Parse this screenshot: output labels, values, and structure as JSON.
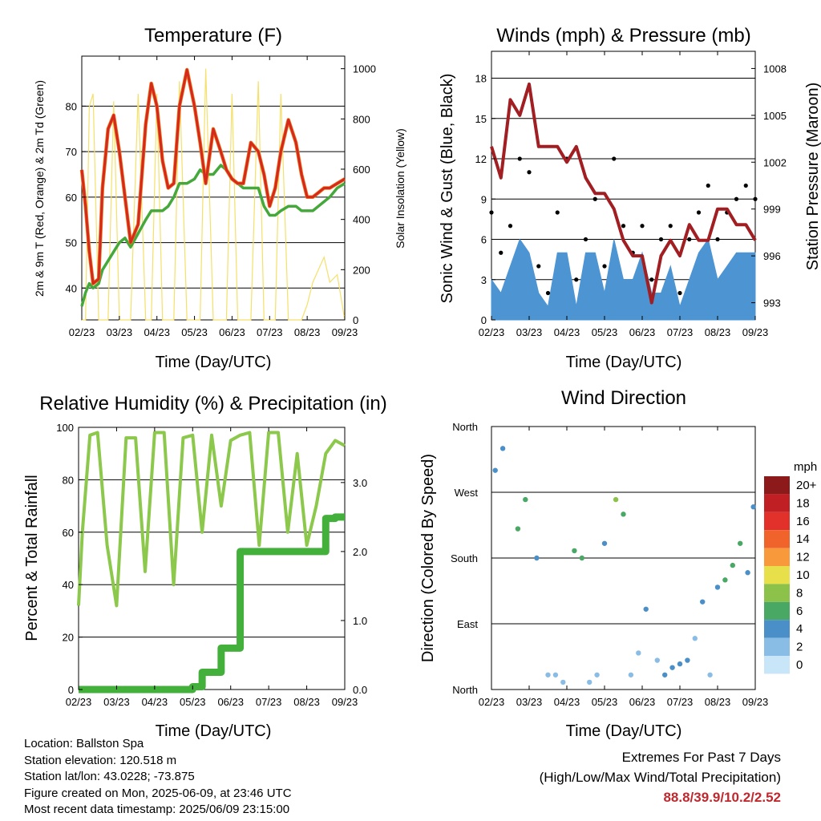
{
  "charts": {
    "temp": {
      "title": "Temperature (F)",
      "xlabel": "Time (Day/UTC)",
      "ylabel": "2m & 9m T (Red, Orange) & 2m Td (Green)",
      "ylabel_right": "Solar Insolation (Yellow)",
      "xticks": [
        "02/23",
        "03/23",
        "04/23",
        "05/23",
        "06/23",
        "07/23",
        "08/23",
        "09/23"
      ],
      "yticks": [
        "40",
        "50",
        "60",
        "70",
        "80"
      ],
      "yticks_right": [
        "0",
        "200",
        "400",
        "600",
        "800",
        "1000"
      ]
    },
    "wind": {
      "title": "Winds (mph) & Pressure (mb)",
      "xlabel": "Time (Day/UTC)",
      "ylabel": "Sonic Wind & Gust (Blue, Black)",
      "ylabel_right": "Station Pressure (Maroon)",
      "xticks": [
        "02/23",
        "03/23",
        "04/23",
        "05/23",
        "06/23",
        "07/23",
        "08/23",
        "09/23"
      ],
      "yticks": [
        "0",
        "3",
        "6",
        "9",
        "12",
        "15",
        "18"
      ],
      "yticks_right": [
        "993",
        "996",
        "999",
        "1002",
        "1005",
        "1008"
      ]
    },
    "rh": {
      "title": "Relative Humidity (%) & Precipitation (in)",
      "xlabel": "Time (Day/UTC)",
      "ylabel": "Percent & Total Rainfall",
      "xticks": [
        "02/23",
        "03/23",
        "04/23",
        "05/23",
        "06/23",
        "07/23",
        "08/23",
        "09/23"
      ],
      "yticks": [
        "0",
        "20",
        "40",
        "60",
        "80",
        "100"
      ],
      "yticks_right": [
        "0.0",
        "1.0",
        "2.0",
        "3.0"
      ]
    },
    "dir": {
      "title": "Wind Direction",
      "xlabel": "Time (Day/UTC)",
      "ylabel": "Direction (Colored By Speed)",
      "xticks": [
        "02/23",
        "03/23",
        "04/23",
        "05/23",
        "06/23",
        "07/23",
        "08/23",
        "09/23"
      ],
      "yticks": [
        "North",
        "East",
        "South",
        "West",
        "North"
      ],
      "legend_title": "mph",
      "legend_labels": [
        "20+",
        "18",
        "16",
        "14",
        "12",
        "10",
        "8",
        "6",
        "4",
        "2",
        "0"
      ]
    }
  },
  "colors": {
    "temp_red": "#d42a1e",
    "temp_orange": "#f07a1a",
    "dewpoint": "#44a83a",
    "insolation": "#f5e06a",
    "gust": "#000000",
    "wind": "#4d94d3",
    "pressure": "#a11e22",
    "rh": "#8cc84b",
    "precip": "#44b03c",
    "scale": [
      "#8c1a1a",
      "#c01f24",
      "#e2312b",
      "#f0642c",
      "#f89a3c",
      "#e8e04a",
      "#8cc24a",
      "#4aa865",
      "#4a8fc8",
      "#89bde6",
      "#c8e6f8"
    ]
  },
  "info": {
    "location": "Location: Ballston Spa",
    "elevation": "Station elevation: 120.518 m",
    "latlon": "Station lat/lon: 43.0228; -73.875",
    "created": "Figure created on Mon, 2025-06-09, at 23:46 UTC",
    "recent": "Most recent data timestamp: 2025/06/09 23:15:00"
  },
  "extremes": {
    "title": "Extremes For Past 7 Days",
    "subtitle": "(High/Low/Max Wind/Total Precipitation)",
    "values": "88.8/39.9/10.2/2.52"
  },
  "chart_data": [
    {
      "type": "line",
      "x": [
        0,
        0.1,
        0.2,
        0.3,
        0.45,
        0.55,
        0.7,
        0.85,
        1.0,
        1.15,
        1.3,
        1.5,
        1.7,
        1.85,
        2.0,
        2.15,
        2.3,
        2.45,
        2.6,
        2.8,
        3.0,
        3.15,
        3.3,
        3.5,
        3.7,
        3.85,
        4.0,
        4.15,
        4.3,
        4.5,
        4.7,
        4.85,
        5.0,
        5.15,
        5.3,
        5.5,
        5.7,
        5.85,
        6.0,
        6.15,
        6.3,
        6.45,
        6.6,
        6.8,
        7.0
      ],
      "series": [
        {
          "name": "2m T",
          "values": [
            66,
            58,
            48,
            41,
            42,
            62,
            75,
            78,
            70,
            60,
            50,
            54,
            76,
            85,
            80,
            68,
            62,
            63,
            80,
            88,
            80,
            72,
            63,
            75,
            70,
            66,
            64,
            63,
            63,
            72,
            70,
            65,
            58,
            62,
            70,
            77,
            72,
            65,
            60,
            60,
            61,
            62,
            62,
            63,
            64
          ]
        },
        {
          "name": "2m Td",
          "values": [
            36,
            39,
            41,
            40,
            41,
            44,
            46,
            48,
            50,
            51,
            49,
            52,
            55,
            57,
            57,
            57,
            58,
            60,
            63,
            63,
            64,
            66,
            65,
            65,
            67,
            66,
            64,
            63,
            62,
            62,
            62,
            58,
            56,
            56,
            57,
            58,
            58,
            57,
            57,
            57,
            58,
            59,
            60,
            62,
            63
          ]
        },
        {
          "name": "Solar Insolation",
          "values": [
            0,
            0,
            850,
            900,
            0,
            0,
            0,
            870,
            0,
            0,
            0,
            900,
            0,
            0,
            900,
            0,
            0,
            0,
            950,
            0,
            0,
            0,
            1000,
            0,
            0,
            0,
            900,
            0,
            0,
            0,
            950,
            0,
            0,
            0,
            900,
            0,
            0,
            0,
            60,
            150,
            200,
            250,
            150,
            180,
            0
          ]
        }
      ],
      "title": "Temperature (F)",
      "xlabel": "Time (Day/UTC)",
      "ylabel": "2m & 9m T (Red, Orange) & 2m Td (Green)",
      "ylim": [
        33,
        91
      ],
      "y2lim": [
        0,
        1050
      ]
    },
    {
      "type": "line",
      "x": [
        0,
        0.25,
        0.5,
        0.75,
        1.0,
        1.25,
        1.5,
        1.75,
        2.0,
        2.25,
        2.5,
        2.75,
        3.0,
        3.25,
        3.5,
        3.75,
        4.0,
        4.25,
        4.5,
        4.75,
        5.0,
        5.25,
        5.5,
        5.75,
        6.0,
        6.25,
        6.5,
        6.75,
        7.0
      ],
      "series": [
        {
          "name": "Wind",
          "values": [
            3,
            2,
            4,
            6,
            5,
            2,
            1,
            5,
            5,
            1,
            5,
            5,
            2,
            6,
            3,
            3,
            5,
            2,
            2,
            4,
            1,
            3,
            5,
            6,
            3,
            4,
            5,
            5,
            5
          ]
        },
        {
          "name": "Gust",
          "values": [
            8,
            5,
            7,
            12,
            11,
            4,
            2,
            8,
            12,
            3,
            6,
            9,
            4,
            12,
            7,
            5,
            7,
            3,
            6,
            7,
            2,
            6,
            8,
            10,
            6,
            8,
            9,
            10,
            9
          ]
        },
        {
          "name": "Pressure",
          "values": [
            1003,
            1001,
            1006,
            1005,
            1007,
            1003,
            1003,
            1003,
            1002,
            1003,
            1001,
            1000,
            1000,
            999,
            997,
            996,
            996,
            993,
            996,
            997,
            996,
            998,
            997,
            997,
            999,
            999,
            998,
            998,
            997
          ]
        }
      ],
      "title": "Winds (mph) & Pressure (mb)",
      "xlabel": "Time (Day/UTC)",
      "ylabel": "Sonic Wind & Gust (Blue, Black)",
      "ylim": [
        0,
        20
      ],
      "y2lim": [
        991.9,
        1009.1
      ]
    },
    {
      "type": "line",
      "x": [
        0,
        0.1,
        0.3,
        0.5,
        0.75,
        1.0,
        1.25,
        1.5,
        1.75,
        2.0,
        2.25,
        2.5,
        2.75,
        3.0,
        3.25,
        3.5,
        3.75,
        4.0,
        4.25,
        4.5,
        4.75,
        5.0,
        5.25,
        5.5,
        5.75,
        6.0,
        6.25,
        6.5,
        6.75,
        7.0
      ],
      "series": [
        {
          "name": "RH",
          "values": [
            32,
            60,
            97,
            98,
            55,
            32,
            96,
            96,
            45,
            98,
            98,
            40,
            96,
            97,
            60,
            97,
            70,
            95,
            97,
            98,
            55,
            98,
            98,
            60,
            90,
            55,
            70,
            90,
            95,
            93
          ]
        },
        {
          "name": "Total Rainfall",
          "values": [
            0,
            0,
            0,
            0,
            0,
            0,
            0,
            0,
            0,
            0,
            0,
            0,
            0,
            0.04,
            0.25,
            0.25,
            0.6,
            0.6,
            2.0,
            2.0,
            2.0,
            2.0,
            2.0,
            2.0,
            2.0,
            2.0,
            2.0,
            2.48,
            2.5,
            2.5
          ]
        }
      ],
      "title": "Relative Humidity (%) & Precipitation (in)",
      "xlabel": "Time (Day/UTC)",
      "ylabel": "Percent & Total Rainfall",
      "ylim": [
        0,
        100
      ],
      "y2lim": [
        0,
        3.8
      ]
    },
    {
      "type": "scatter",
      "x": [
        0.1,
        0.3,
        0.7,
        0.9,
        1.2,
        1.5,
        1.7,
        1.9,
        2.2,
        2.4,
        2.6,
        2.8,
        3.0,
        3.3,
        3.5,
        3.7,
        3.9,
        4.1,
        4.4,
        4.6,
        4.8,
        5.0,
        5.2,
        5.4,
        5.6,
        5.8,
        6.0,
        6.2,
        6.4,
        6.6,
        6.8,
        6.95
      ],
      "y": [
        300,
        330,
        220,
        260,
        180,
        20,
        20,
        10,
        190,
        180,
        10,
        20,
        200,
        260,
        240,
        20,
        50,
        110,
        40,
        20,
        30,
        35,
        40,
        70,
        120,
        20,
        140,
        150,
        170,
        200,
        160,
        250
      ],
      "series": [
        {
          "name": "speed",
          "values": [
            4,
            3,
            5,
            6,
            4,
            1,
            1,
            1,
            5,
            6,
            1,
            1,
            4,
            7,
            5,
            1,
            2,
            3,
            2,
            3,
            4,
            3,
            3,
            2,
            4,
            2,
            4,
            5,
            6,
            5,
            4,
            3
          ]
        }
      ],
      "title": "Wind Direction",
      "xlabel": "Time (Day/UTC)",
      "ylabel": "Direction (Colored By Speed)",
      "ylim": [
        0,
        360
      ]
    }
  ]
}
